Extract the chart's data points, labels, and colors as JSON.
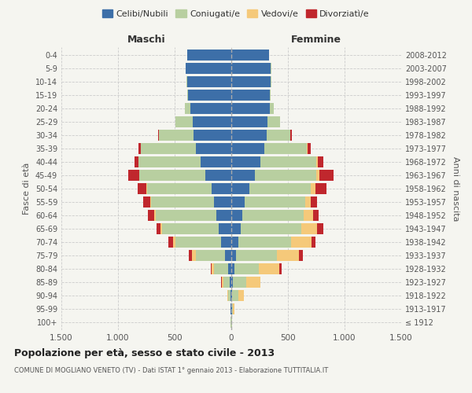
{
  "age_groups": [
    "100+",
    "95-99",
    "90-94",
    "85-89",
    "80-84",
    "75-79",
    "70-74",
    "65-69",
    "60-64",
    "55-59",
    "50-54",
    "45-49",
    "40-44",
    "35-39",
    "30-34",
    "25-29",
    "20-24",
    "15-19",
    "10-14",
    "5-9",
    "0-4"
  ],
  "birth_years": [
    "≤ 1912",
    "1913-1917",
    "1918-1922",
    "1923-1927",
    "1928-1932",
    "1933-1937",
    "1938-1942",
    "1943-1947",
    "1948-1952",
    "1953-1957",
    "1958-1962",
    "1963-1967",
    "1968-1972",
    "1973-1977",
    "1978-1982",
    "1983-1987",
    "1988-1992",
    "1993-1997",
    "1998-2002",
    "2003-2007",
    "2008-2012"
  ],
  "maschi": {
    "celibe": [
      2,
      4,
      8,
      15,
      30,
      55,
      90,
      110,
      130,
      150,
      175,
      230,
      270,
      310,
      330,
      340,
      360,
      380,
      390,
      400,
      390
    ],
    "coniugato": [
      2,
      5,
      20,
      55,
      120,
      260,
      400,
      500,
      540,
      560,
      570,
      580,
      550,
      490,
      310,
      150,
      50,
      10,
      5,
      2,
      1
    ],
    "vedovo": [
      0,
      0,
      5,
      15,
      25,
      30,
      25,
      15,
      8,
      5,
      3,
      2,
      1,
      0,
      0,
      0,
      0,
      0,
      0,
      0,
      0
    ],
    "divorziato": [
      0,
      0,
      0,
      2,
      5,
      30,
      40,
      35,
      55,
      65,
      80,
      100,
      35,
      20,
      5,
      2,
      0,
      0,
      0,
      0,
      0
    ]
  },
  "femmine": {
    "nubile": [
      2,
      4,
      10,
      15,
      25,
      40,
      60,
      80,
      100,
      120,
      160,
      210,
      260,
      290,
      310,
      320,
      340,
      340,
      350,
      350,
      330
    ],
    "coniugata": [
      2,
      10,
      50,
      120,
      220,
      360,
      470,
      540,
      540,
      530,
      540,
      540,
      490,
      380,
      210,
      110,
      35,
      10,
      5,
      2,
      1
    ],
    "vedova": [
      2,
      15,
      50,
      120,
      180,
      200,
      180,
      140,
      80,
      50,
      40,
      30,
      15,
      5,
      3,
      1,
      0,
      0,
      0,
      0,
      0
    ],
    "divorziata": [
      0,
      0,
      2,
      5,
      20,
      30,
      35,
      50,
      50,
      55,
      100,
      120,
      50,
      25,
      10,
      2,
      0,
      0,
      0,
      0,
      0
    ]
  },
  "colors": {
    "celibe": "#3d6fa8",
    "coniugato": "#b8cfa0",
    "vedovo": "#f5c97a",
    "divorziato": "#c0272d"
  },
  "xlim": 1500,
  "xticks": [
    -1500,
    -1000,
    -500,
    0,
    500,
    1000,
    1500
  ],
  "xticklabels": [
    "1.500",
    "1.000",
    "500",
    "0",
    "500",
    "1.000",
    "1.500"
  ],
  "title": "Popolazione per età, sesso e stato civile - 2013",
  "subtitle": "COMUNE DI MOGLIANO VENETO (TV) - Dati ISTAT 1° gennaio 2013 - Elaborazione TUTTITALIA.IT",
  "ylabel_left": "Fasce di età",
  "ylabel_right": "Anni di nascita",
  "bg_color": "#f5f5f0",
  "maschi_label": "Maschi",
  "femmine_label": "Femmine",
  "legend_labels": [
    "Celibi/Nubili",
    "Coniugati/e",
    "Vedovi/e",
    "Divorziatì/e"
  ]
}
